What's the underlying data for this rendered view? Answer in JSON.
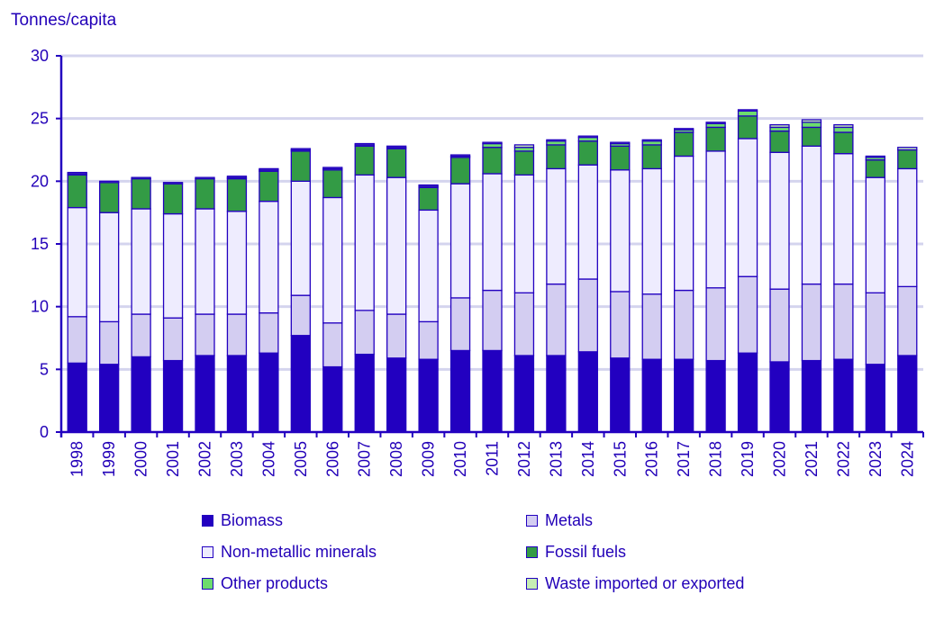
{
  "chart_data": {
    "type": "bar",
    "stacked": true,
    "ylabel": "Tonnes/capita",
    "ylim": [
      0,
      30
    ],
    "yticks": [
      0,
      5,
      10,
      15,
      20,
      25,
      30
    ],
    "grid": true,
    "legend_position": "bottom",
    "categories": [
      "1998",
      "1999",
      "2000",
      "2001",
      "2002",
      "2003",
      "2004",
      "2005",
      "2006",
      "2007",
      "2008",
      "2009",
      "2010",
      "2011",
      "2012",
      "2013",
      "2014",
      "2015",
      "2016",
      "2017",
      "2018",
      "2019",
      "2020",
      "2021",
      "2022",
      "2023",
      "2024"
    ],
    "series": [
      {
        "name": "Biomass",
        "color": "#2200c0",
        "values": [
          5.5,
          5.4,
          6.0,
          5.7,
          6.1,
          6.1,
          6.3,
          7.7,
          5.2,
          6.2,
          5.9,
          5.8,
          6.5,
          6.5,
          6.1,
          6.1,
          6.4,
          5.9,
          5.8,
          5.8,
          5.7,
          6.3,
          5.6,
          5.7,
          5.8,
          5.4,
          6.1
        ]
      },
      {
        "name": "Metals",
        "color": "#d3cdf1",
        "values": [
          3.7,
          3.4,
          3.4,
          3.4,
          3.3,
          3.3,
          3.2,
          3.2,
          3.5,
          3.5,
          3.5,
          3.0,
          4.2,
          4.8,
          5.0,
          5.7,
          5.8,
          5.3,
          5.2,
          5.5,
          5.8,
          6.1,
          5.8,
          6.1,
          6.0,
          5.7,
          5.5
        ]
      },
      {
        "name": "Non-metallic minerals",
        "color": "#eeecfe",
        "values": [
          8.7,
          8.7,
          8.4,
          8.3,
          8.4,
          8.2,
          8.9,
          9.1,
          10.0,
          10.8,
          10.9,
          8.9,
          9.1,
          9.3,
          9.4,
          9.2,
          9.1,
          9.7,
          10.0,
          10.7,
          10.9,
          11.0,
          10.9,
          11.0,
          10.4,
          9.2,
          9.4
        ]
      },
      {
        "name": "Fossil fuels",
        "color": "#339b45",
        "values": [
          2.6,
          2.4,
          2.4,
          2.4,
          2.4,
          2.6,
          2.4,
          2.4,
          2.2,
          2.3,
          2.3,
          1.8,
          2.1,
          2.1,
          1.9,
          1.9,
          1.9,
          1.9,
          1.9,
          1.9,
          1.9,
          1.8,
          1.7,
          1.5,
          1.7,
          1.4,
          1.5
        ]
      },
      {
        "name": "Other products",
        "color": "#6ddc6d",
        "values": [
          0.1,
          0.0,
          0.1,
          0.1,
          0.0,
          0.1,
          0.1,
          0.1,
          0.1,
          0.1,
          0.1,
          0.1,
          0.1,
          0.3,
          0.3,
          0.3,
          0.3,
          0.2,
          0.3,
          0.2,
          0.3,
          0.4,
          0.3,
          0.4,
          0.4,
          0.2,
          0.0
        ]
      },
      {
        "name": "Waste imported or exported",
        "color": "#c6eeb4",
        "values": [
          0.1,
          0.1,
          0.0,
          0.0,
          0.1,
          0.1,
          0.1,
          0.1,
          0.1,
          0.1,
          0.1,
          0.1,
          0.1,
          0.1,
          0.2,
          0.1,
          0.1,
          0.1,
          0.1,
          0.1,
          0.1,
          0.1,
          0.2,
          0.2,
          0.2,
          0.1,
          0.2
        ]
      }
    ],
    "outline_color": "#2200c0",
    "grid_color": "#d4d4ee"
  }
}
